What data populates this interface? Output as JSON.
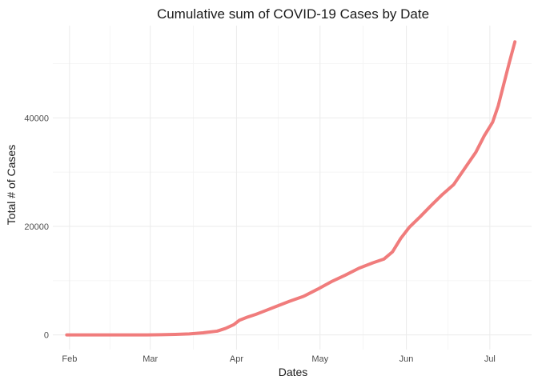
{
  "chart_data": {
    "type": "line",
    "title": "Cumulative sum of COVID-19 Cases by Date",
    "xlabel": "Dates",
    "ylabel": "Total # of Cases",
    "x_tick_labels": [
      "Feb",
      "Mar",
      "Apr",
      "May",
      "Jun",
      "Jul"
    ],
    "x_tick_dates": [
      "2020-02-01",
      "2020-03-01",
      "2020-04-01",
      "2020-05-01",
      "2020-06-01",
      "2020-07-01"
    ],
    "y_tick_labels": [
      "0",
      "20000",
      "40000"
    ],
    "y_tick_values": [
      0,
      20000,
      40000
    ],
    "xlim": [
      "2020-01-26",
      "2020-07-16"
    ],
    "ylim": [
      -2700,
      57000
    ],
    "grid": true,
    "line_color": "#F07C7C",
    "series": [
      {
        "x": [
          "2020-01-31",
          "2020-02-10",
          "2020-02-20",
          "2020-02-29",
          "2020-03-05",
          "2020-03-10",
          "2020-03-15",
          "2020-03-20",
          "2020-03-25",
          "2020-03-28",
          "2020-03-31",
          "2020-04-02",
          "2020-04-05",
          "2020-04-08",
          "2020-04-10",
          "2020-04-15",
          "2020-04-20",
          "2020-04-25",
          "2020-04-30",
          "2020-05-05",
          "2020-05-10",
          "2020-05-15",
          "2020-05-20",
          "2020-05-24",
          "2020-05-27",
          "2020-05-30",
          "2020-06-02",
          "2020-06-06",
          "2020-06-10",
          "2020-06-14",
          "2020-06-18",
          "2020-06-22",
          "2020-06-26",
          "2020-06-29",
          "2020-07-02",
          "2020-07-04",
          "2020-07-06",
          "2020-07-08",
          "2020-07-10"
        ],
        "y": [
          0,
          0,
          0,
          0,
          50,
          100,
          200,
          400,
          700,
          1200,
          1900,
          2700,
          3300,
          3800,
          4200,
          5200,
          6200,
          7100,
          8400,
          9800,
          11000,
          12300,
          13300,
          14000,
          15300,
          17800,
          19800,
          21800,
          23900,
          25900,
          27700,
          30700,
          33700,
          36700,
          39200,
          42200,
          46200,
          50200,
          54000
        ]
      }
    ]
  }
}
